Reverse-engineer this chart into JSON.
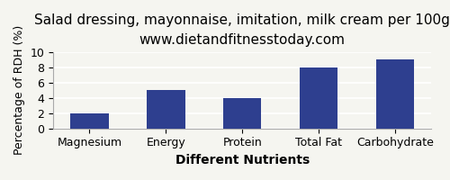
{
  "title": "Salad dressing, mayonnaise, imitation, milk cream per 100g",
  "subtitle": "www.dietandfitnesstoday.com",
  "categories": [
    "Magnesium",
    "Energy",
    "Protein",
    "Total Fat",
    "Carbohydrate"
  ],
  "values": [
    2.0,
    5.0,
    4.0,
    8.0,
    9.0
  ],
  "bar_color": "#2e3f8f",
  "xlabel": "Different Nutrients",
  "ylabel": "Percentage of RDH (%)",
  "ylim": [
    0,
    10
  ],
  "yticks": [
    0,
    2,
    4,
    6,
    8,
    10
  ],
  "title_fontsize": 11,
  "subtitle_fontsize": 9,
  "xlabel_fontsize": 10,
  "ylabel_fontsize": 9,
  "tick_fontsize": 9,
  "background_color": "#f5f5f0",
  "grid_color": "#ffffff"
}
